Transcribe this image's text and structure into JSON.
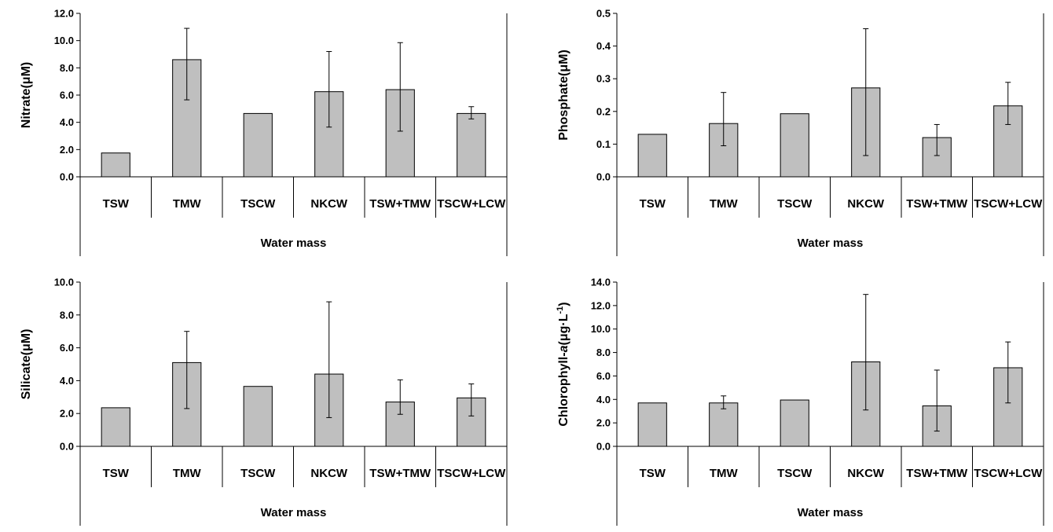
{
  "chart_data": [
    {
      "type": "bar",
      "categories": [
        "TSW",
        "TMW",
        "TSCW",
        "NKCW",
        "TSW+TMW",
        "TSCW+LCW"
      ],
      "values": [
        1.75,
        8.6,
        4.65,
        6.25,
        6.4,
        4.65
      ],
      "error_low": [
        null,
        5.65,
        null,
        3.65,
        3.35,
        4.25
      ],
      "error_high": [
        null,
        10.9,
        null,
        9.2,
        9.85,
        5.15
      ],
      "ylabel": "Nitrate(μM)",
      "xlabel": "Water mass",
      "ylim": [
        0,
        12
      ],
      "yticks": [
        "0.0",
        "2.0",
        "4.0",
        "6.0",
        "8.0",
        "10.0",
        "12.0"
      ],
      "grid": false
    },
    {
      "type": "bar",
      "categories": [
        "TSW",
        "TMW",
        "TSCW",
        "NKCW",
        "TSW+TMW",
        "TSCW+LCW"
      ],
      "values": [
        0.13,
        0.163,
        0.193,
        0.272,
        0.12,
        0.217
      ],
      "error_low": [
        null,
        0.095,
        null,
        0.065,
        0.065,
        0.16
      ],
      "error_high": [
        null,
        0.258,
        null,
        0.453,
        0.16,
        0.289
      ],
      "ylabel": "Phosphate(μM)",
      "xlabel": "Water mass",
      "ylim": [
        0,
        0.5
      ],
      "yticks": [
        "0.0",
        "0.1",
        "0.2",
        "0.3",
        "0.4",
        "0.5"
      ],
      "grid": false
    },
    {
      "type": "bar",
      "categories": [
        "TSW",
        "TMW",
        "TSCW",
        "NKCW",
        "TSW+TMW",
        "TSCW+LCW"
      ],
      "values": [
        2.35,
        5.1,
        3.65,
        4.4,
        2.7,
        2.95
      ],
      "error_low": [
        null,
        2.3,
        null,
        1.75,
        1.95,
        1.85
      ],
      "error_high": [
        null,
        7.0,
        null,
        8.8,
        4.05,
        3.8
      ],
      "ylabel": "Silicate(μM)",
      "xlabel": "Water mass",
      "ylim": [
        0,
        10
      ],
      "yticks": [
        "0.0",
        "2.0",
        "4.0",
        "6.0",
        "8.0",
        "10.0"
      ],
      "grid": false
    },
    {
      "type": "bar",
      "categories": [
        "TSW",
        "TMW",
        "TSCW",
        "NKCW",
        "TSW+TMW",
        "TSCW+LCW"
      ],
      "values": [
        3.7,
        3.7,
        3.95,
        7.2,
        3.45,
        6.7
      ],
      "error_low": [
        null,
        3.2,
        null,
        3.1,
        1.3,
        3.7
      ],
      "error_high": [
        null,
        4.3,
        null,
        12.95,
        6.5,
        8.9
      ],
      "ylabel": "Chlorophyll-a(μg·L-1)",
      "ylabel_parts": {
        "prefix": "Chlorophyll-",
        "italic": "a",
        "mid": "(μg·L",
        "sup": "-1",
        "suffix": ")"
      },
      "xlabel": "Water mass",
      "ylim": [
        0,
        14
      ],
      "yticks": [
        "0.0",
        "2.0",
        "4.0",
        "6.0",
        "8.0",
        "10.0",
        "12.0",
        "14.0"
      ],
      "grid": false
    }
  ],
  "style": {
    "bar_fill": "#bfbfbf",
    "bar_stroke": "#000000",
    "axis_color": "#000000",
    "background": "#ffffff"
  }
}
